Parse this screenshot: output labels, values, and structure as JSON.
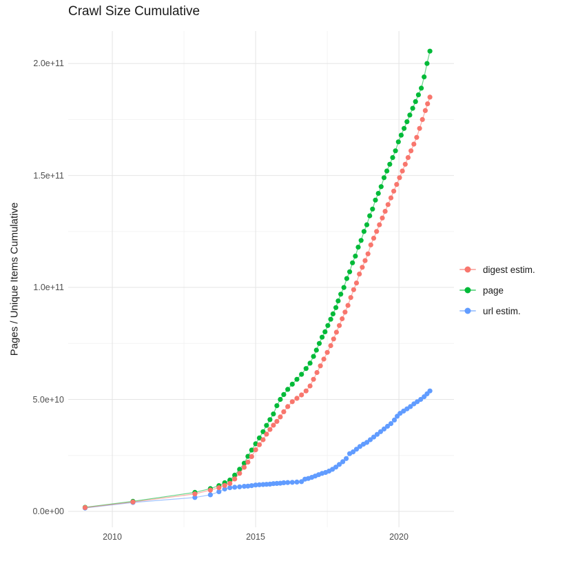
{
  "chart_data": {
    "type": "scatter",
    "title": "Crawl Size Cumulative",
    "xlabel": "",
    "ylabel": "Pages / Unique Items Cumulative",
    "grid": true,
    "legend_position": "right",
    "x_domain": [
      2008.46,
      2021.92
    ],
    "y_domain": [
      -7080000000.0,
      214500000000.0
    ],
    "x_tick_values": [
      2010,
      2015,
      2020
    ],
    "x_tick_labels": [
      "2010",
      "2015",
      "2020"
    ],
    "x_minor_tick_values": [
      2012.5,
      2017.5
    ],
    "y_tick_values": [
      0,
      50000000000.0,
      100000000000.0,
      150000000000.0,
      200000000000.0
    ],
    "y_tick_labels": [
      "0.0e+00",
      "5.0e+10",
      "1.0e+11",
      "1.5e+11",
      "2.0e+11"
    ],
    "y_minor_tick_values": [
      25000000000.0,
      75000000000.0,
      125000000000.0,
      175000000000.0
    ],
    "series": [
      {
        "name": "digest estim.",
        "color": "#F8766D",
        "points": [
          [
            2009.05,
            1700000000.0
          ],
          [
            2010.72,
            4200000000.0
          ],
          [
            2012.88,
            7800000000.0
          ],
          [
            2013.42,
            9500000000.0
          ],
          [
            2013.72,
            10600000000.0
          ],
          [
            2013.92,
            11600000000.0
          ],
          [
            2014.1,
            12500000000.0
          ],
          [
            2014.27,
            14500000000.0
          ],
          [
            2014.44,
            17000000000.0
          ],
          [
            2014.6,
            19700000000.0
          ],
          [
            2014.73,
            22000000000.0
          ],
          [
            2014.86,
            24500000000.0
          ],
          [
            2015.0,
            27500000000.0
          ],
          [
            2015.13,
            29800000000.0
          ],
          [
            2015.26,
            32000000000.0
          ],
          [
            2015.38,
            34500000000.0
          ],
          [
            2015.5,
            36600000000.0
          ],
          [
            2015.62,
            38500000000.0
          ],
          [
            2015.74,
            40200000000.0
          ],
          [
            2015.86,
            42200000000.0
          ],
          [
            2015.98,
            44500000000.0
          ],
          [
            2016.12,
            46800000000.0
          ],
          [
            2016.28,
            49000000000.0
          ],
          [
            2016.44,
            50500000000.0
          ],
          [
            2016.6,
            52000000000.0
          ],
          [
            2016.76,
            53800000000.0
          ],
          [
            2016.9,
            56000000000.0
          ],
          [
            2017.02,
            59000000000.0
          ],
          [
            2017.14,
            62000000000.0
          ],
          [
            2017.26,
            65000000000.0
          ],
          [
            2017.38,
            68000000000.0
          ],
          [
            2017.5,
            71000000000.0
          ],
          [
            2017.62,
            74000000000.0
          ],
          [
            2017.72,
            77000000000.0
          ],
          [
            2017.82,
            80000000000.0
          ],
          [
            2017.92,
            83000000000.0
          ],
          [
            2018.02,
            86000000000.0
          ],
          [
            2018.12,
            89000000000.0
          ],
          [
            2018.22,
            92000000000.0
          ],
          [
            2018.32,
            95500000000.0
          ],
          [
            2018.42,
            99000000000.0
          ],
          [
            2018.52,
            102000000000.0
          ],
          [
            2018.62,
            106000000000.0
          ],
          [
            2018.72,
            109000000000.0
          ],
          [
            2018.82,
            112000000000.0
          ],
          [
            2018.92,
            115000000000.0
          ],
          [
            2019.02,
            119000000000.0
          ],
          [
            2019.12,
            122000000000.0
          ],
          [
            2019.22,
            125000000000.0
          ],
          [
            2019.32,
            128000000000.0
          ],
          [
            2019.42,
            131000000000.0
          ],
          [
            2019.52,
            134000000000.0
          ],
          [
            2019.62,
            137000000000.0
          ],
          [
            2019.72,
            140000000000.0
          ],
          [
            2019.82,
            143000000000.0
          ],
          [
            2019.92,
            146000000000.0
          ],
          [
            2020.02,
            149000000000.0
          ],
          [
            2020.12,
            152000000000.0
          ],
          [
            2020.22,
            155000000000.0
          ],
          [
            2020.32,
            158000000000.0
          ],
          [
            2020.42,
            161000000000.0
          ],
          [
            2020.52,
            164000000000.0
          ],
          [
            2020.62,
            167000000000.0
          ],
          [
            2020.72,
            171000000000.0
          ],
          [
            2020.82,
            175000000000.0
          ],
          [
            2020.92,
            179000000000.0
          ],
          [
            2021.0,
            182000000000.0
          ],
          [
            2021.08,
            185000000000.0
          ]
        ]
      },
      {
        "name": "page",
        "color": "#00BA38",
        "points": [
          [
            2009.05,
            1800000000.0
          ],
          [
            2010.72,
            4500000000.0
          ],
          [
            2012.88,
            8500000000.0
          ],
          [
            2013.42,
            10200000000.0
          ],
          [
            2013.72,
            11500000000.0
          ],
          [
            2013.92,
            12800000000.0
          ],
          [
            2014.1,
            14000000000.0
          ],
          [
            2014.27,
            16200000000.0
          ],
          [
            2014.44,
            18800000000.0
          ],
          [
            2014.6,
            21500000000.0
          ],
          [
            2014.73,
            24600000000.0
          ],
          [
            2014.86,
            27400000000.0
          ],
          [
            2015.0,
            30200000000.0
          ],
          [
            2015.13,
            32800000000.0
          ],
          [
            2015.26,
            35600000000.0
          ],
          [
            2015.38,
            38400000000.0
          ],
          [
            2015.5,
            41000000000.0
          ],
          [
            2015.62,
            43500000000.0
          ],
          [
            2015.74,
            47200000000.0
          ],
          [
            2015.86,
            50000000000.0
          ],
          [
            2015.98,
            52200000000.0
          ],
          [
            2016.12,
            54500000000.0
          ],
          [
            2016.28,
            56800000000.0
          ],
          [
            2016.44,
            59000000000.0
          ],
          [
            2016.6,
            61200000000.0
          ],
          [
            2016.76,
            63800000000.0
          ],
          [
            2016.9,
            66200000000.0
          ],
          [
            2017.02,
            69200000000.0
          ],
          [
            2017.12,
            72000000000.0
          ],
          [
            2017.22,
            75000000000.0
          ],
          [
            2017.32,
            77800000000.0
          ],
          [
            2017.42,
            80200000000.0
          ],
          [
            2017.52,
            83000000000.0
          ],
          [
            2017.62,
            85800000000.0
          ],
          [
            2017.7,
            88200000000.0
          ],
          [
            2017.8,
            91000000000.0
          ],
          [
            2017.88,
            94000000000.0
          ],
          [
            2017.97,
            97000000000.0
          ],
          [
            2018.08,
            100000000000.0
          ],
          [
            2018.18,
            104000000000.0
          ],
          [
            2018.28,
            107000000000.0
          ],
          [
            2018.38,
            111000000000.0
          ],
          [
            2018.48,
            114000000000.0
          ],
          [
            2018.58,
            118000000000.0
          ],
          [
            2018.68,
            121000000000.0
          ],
          [
            2018.78,
            125000000000.0
          ],
          [
            2018.88,
            128000000000.0
          ],
          [
            2018.98,
            132000000000.0
          ],
          [
            2019.08,
            135000000000.0
          ],
          [
            2019.18,
            139000000000.0
          ],
          [
            2019.28,
            142000000000.0
          ],
          [
            2019.38,
            145000000000.0
          ],
          [
            2019.48,
            149000000000.0
          ],
          [
            2019.58,
            152000000000.0
          ],
          [
            2019.68,
            155000000000.0
          ],
          [
            2019.78,
            158000000000.0
          ],
          [
            2019.88,
            161000000000.0
          ],
          [
            2019.98,
            165000000000.0
          ],
          [
            2020.08,
            168000000000.0
          ],
          [
            2020.18,
            171000000000.0
          ],
          [
            2020.28,
            174000000000.0
          ],
          [
            2020.38,
            177000000000.0
          ],
          [
            2020.48,
            180000000000.0
          ],
          [
            2020.58,
            183000000000.0
          ],
          [
            2020.68,
            186000000000.0
          ],
          [
            2020.78,
            189000000000.0
          ],
          [
            2020.88,
            194000000000.0
          ],
          [
            2020.98,
            200000000000.0
          ],
          [
            2021.08,
            205500000000.0
          ]
        ]
      },
      {
        "name": "url estim.",
        "color": "#619CFF",
        "points": [
          [
            2009.05,
            1500000000.0
          ],
          [
            2010.72,
            4000000000.0
          ],
          [
            2012.88,
            6200000000.0
          ],
          [
            2013.42,
            7400000000.0
          ],
          [
            2013.72,
            8800000000.0
          ],
          [
            2013.92,
            10000000000.0
          ],
          [
            2014.1,
            10600000000.0
          ],
          [
            2014.27,
            10800000000.0
          ],
          [
            2014.44,
            11000000000.0
          ],
          [
            2014.6,
            11200000000.0
          ],
          [
            2014.73,
            11300000000.0
          ],
          [
            2014.86,
            11500000000.0
          ],
          [
            2015.0,
            11800000000.0
          ],
          [
            2015.13,
            11900000000.0
          ],
          [
            2015.26,
            12000000000.0
          ],
          [
            2015.38,
            12100000000.0
          ],
          [
            2015.5,
            12200000000.0
          ],
          [
            2015.62,
            12400000000.0
          ],
          [
            2015.74,
            12500000000.0
          ],
          [
            2015.86,
            12600000000.0
          ],
          [
            2015.98,
            12800000000.0
          ],
          [
            2016.12,
            12900000000.0
          ],
          [
            2016.28,
            13000000000.0
          ],
          [
            2016.44,
            13100000000.0
          ],
          [
            2016.6,
            13300000000.0
          ],
          [
            2016.72,
            14400000000.0
          ],
          [
            2016.84,
            14700000000.0
          ],
          [
            2016.96,
            15200000000.0
          ],
          [
            2017.08,
            15800000000.0
          ],
          [
            2017.2,
            16400000000.0
          ],
          [
            2017.32,
            17000000000.0
          ],
          [
            2017.44,
            17400000000.0
          ],
          [
            2017.56,
            18000000000.0
          ],
          [
            2017.68,
            18800000000.0
          ],
          [
            2017.8,
            19800000000.0
          ],
          [
            2017.92,
            21000000000.0
          ],
          [
            2018.04,
            22200000000.0
          ],
          [
            2018.16,
            23600000000.0
          ],
          [
            2018.28,
            25800000000.0
          ],
          [
            2018.4,
            26600000000.0
          ],
          [
            2018.52,
            27800000000.0
          ],
          [
            2018.64,
            29000000000.0
          ],
          [
            2018.76,
            30000000000.0
          ],
          [
            2018.88,
            30800000000.0
          ],
          [
            2019.0,
            32000000000.0
          ],
          [
            2019.12,
            33200000000.0
          ],
          [
            2019.24,
            34400000000.0
          ],
          [
            2019.36,
            35600000000.0
          ],
          [
            2019.48,
            36800000000.0
          ],
          [
            2019.6,
            38000000000.0
          ],
          [
            2019.72,
            39200000000.0
          ],
          [
            2019.84,
            40800000000.0
          ],
          [
            2019.94,
            42500000000.0
          ],
          [
            2020.04,
            43800000000.0
          ],
          [
            2020.16,
            44800000000.0
          ],
          [
            2020.28,
            45800000000.0
          ],
          [
            2020.4,
            46800000000.0
          ],
          [
            2020.52,
            48000000000.0
          ],
          [
            2020.64,
            49000000000.0
          ],
          [
            2020.76,
            50000000000.0
          ],
          [
            2020.88,
            51200000000.0
          ],
          [
            2020.98,
            52500000000.0
          ],
          [
            2021.08,
            53800000000.0
          ]
        ]
      }
    ],
    "style": {
      "major_grid_color": "#e4e4e4",
      "minor_grid_color": "#f3f3f3",
      "background": "#ffffff",
      "point_radius": 3.6
    }
  },
  "legend": {
    "items": [
      {
        "label": "digest estim.",
        "color": "#F8766D"
      },
      {
        "label": "page",
        "color": "#00BA38"
      },
      {
        "label": "url estim.",
        "color": "#619CFF"
      }
    ]
  }
}
